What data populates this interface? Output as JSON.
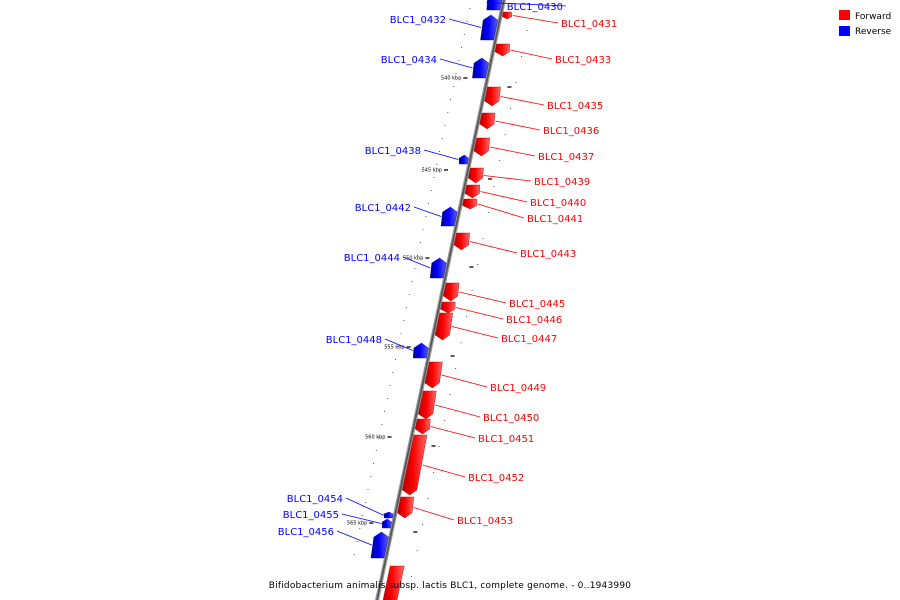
{
  "caption": "Bifidobacterium animalis subsp. lactis BLC1, complete genome. - 0..1943990",
  "legend": [
    {
      "label": "Forward",
      "color": "#ff0000"
    },
    {
      "label": "Reverse",
      "color": "#0000ff"
    }
  ],
  "colors": {
    "forward": "#ff0000",
    "reverse": "#0000ff",
    "backbone": "#888888"
  },
  "ticks": [
    {
      "label": "540 kbp",
      "pos_kbp": 540
    },
    {
      "label": "545 kbp",
      "pos_kbp": 545
    },
    {
      "label": "550 kbp",
      "pos_kbp": 550
    },
    {
      "label": "555 kbp",
      "pos_kbp": 555
    },
    {
      "label": "560 kbp",
      "pos_kbp": 560
    },
    {
      "label": "565 kbp",
      "pos_kbp": 565
    }
  ],
  "genes": [
    {
      "name": "BLC1_0430",
      "strand": "reverse"
    },
    {
      "name": "BLC1_0431",
      "strand": "forward"
    },
    {
      "name": "BLC1_0432",
      "strand": "reverse"
    },
    {
      "name": "BLC1_0433",
      "strand": "forward"
    },
    {
      "name": "BLC1_0434",
      "strand": "reverse"
    },
    {
      "name": "BLC1_0435",
      "strand": "forward"
    },
    {
      "name": "BLC1_0436",
      "strand": "forward"
    },
    {
      "name": "BLC1_0437",
      "strand": "forward"
    },
    {
      "name": "BLC1_0438",
      "strand": "reverse"
    },
    {
      "name": "BLC1_0439",
      "strand": "forward"
    },
    {
      "name": "BLC1_0440",
      "strand": "forward"
    },
    {
      "name": "BLC1_0441",
      "strand": "forward"
    },
    {
      "name": "BLC1_0442",
      "strand": "reverse"
    },
    {
      "name": "BLC1_0443",
      "strand": "forward"
    },
    {
      "name": "BLC1_0444",
      "strand": "reverse"
    },
    {
      "name": "BLC1_0445",
      "strand": "forward"
    },
    {
      "name": "BLC1_0446",
      "strand": "forward"
    },
    {
      "name": "BLC1_0447",
      "strand": "forward"
    },
    {
      "name": "BLC1_0448",
      "strand": "reverse"
    },
    {
      "name": "BLC1_0449",
      "strand": "forward"
    },
    {
      "name": "BLC1_0450",
      "strand": "forward"
    },
    {
      "name": "BLC1_0451",
      "strand": "forward"
    },
    {
      "name": "BLC1_0452",
      "strand": "forward"
    },
    {
      "name": "BLC1_0453",
      "strand": "forward"
    },
    {
      "name": "BLC1_0454",
      "strand": "reverse"
    },
    {
      "name": "BLC1_0455",
      "strand": "reverse"
    },
    {
      "name": "BLC1_0456",
      "strand": "reverse"
    }
  ]
}
